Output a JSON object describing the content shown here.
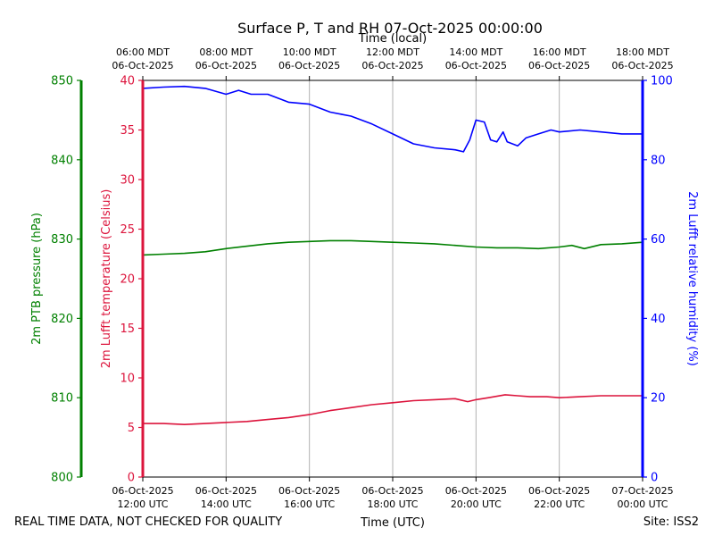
{
  "chart_data": {
    "type": "line",
    "title": "Surface P, T and RH 07-Oct-2025 00:00:00",
    "xlabel": "Time (UTC)",
    "xlabel_top": "Time (local)",
    "x_ticks_bottom": [
      {
        "date": "06-Oct-2025",
        "time": "12:00 UTC"
      },
      {
        "date": "06-Oct-2025",
        "time": "14:00 UTC"
      },
      {
        "date": "06-Oct-2025",
        "time": "16:00 UTC"
      },
      {
        "date": "06-Oct-2025",
        "time": "18:00 UTC"
      },
      {
        "date": "06-Oct-2025",
        "time": "20:00 UTC"
      },
      {
        "date": "06-Oct-2025",
        "time": "22:00 UTC"
      },
      {
        "date": "07-Oct-2025",
        "time": "00:00 UTC"
      }
    ],
    "x_ticks_top": [
      {
        "time": "06:00 MDT",
        "date": "06-Oct-2025"
      },
      {
        "time": "08:00 MDT",
        "date": "06-Oct-2025"
      },
      {
        "time": "10:00 MDT",
        "date": "06-Oct-2025"
      },
      {
        "time": "12:00 MDT",
        "date": "06-Oct-2025"
      },
      {
        "time": "14:00 MDT",
        "date": "06-Oct-2025"
      },
      {
        "time": "16:00 MDT",
        "date": "06-Oct-2025"
      },
      {
        "time": "18:00 MDT",
        "date": "06-Oct-2025"
      }
    ],
    "x_hours_utc": [
      12,
      14,
      16,
      18,
      20,
      22,
      24
    ],
    "xlim_hours_utc": [
      12,
      24
    ],
    "grid": "vertical",
    "axes": {
      "pressure": {
        "label": "2m PTB pressure (hPa)",
        "ylim": [
          800,
          850
        ],
        "ticks": [
          800,
          810,
          820,
          830,
          840,
          850
        ],
        "color": "#008000"
      },
      "temperature": {
        "label": "2m Lufft temperature (Celsius)",
        "ylim": [
          0,
          40
        ],
        "ticks": [
          0,
          5,
          10,
          15,
          20,
          25,
          30,
          35,
          40
        ],
        "color": "#dc143c"
      },
      "humidity": {
        "label": "2m Lufft relative humidity (%)",
        "ylim": [
          0,
          100
        ],
        "ticks": [
          0,
          20,
          40,
          60,
          80,
          100
        ],
        "color": "#0000ff"
      }
    },
    "series": [
      {
        "name": "2m PTB pressure (hPa)",
        "axis": "pressure",
        "color": "#008000",
        "points": [
          [
            12.0,
            828.0
          ],
          [
            12.5,
            828.1
          ],
          [
            13.0,
            828.2
          ],
          [
            13.5,
            828.4
          ],
          [
            14.0,
            828.8
          ],
          [
            14.5,
            829.1
          ],
          [
            15.0,
            829.4
          ],
          [
            15.5,
            829.6
          ],
          [
            16.0,
            829.7
          ],
          [
            16.5,
            829.8
          ],
          [
            17.0,
            829.8
          ],
          [
            17.5,
            829.7
          ],
          [
            18.0,
            829.6
          ],
          [
            18.5,
            829.5
          ],
          [
            19.0,
            829.4
          ],
          [
            19.5,
            829.2
          ],
          [
            20.0,
            829.0
          ],
          [
            20.5,
            828.9
          ],
          [
            21.0,
            828.9
          ],
          [
            21.5,
            828.8
          ],
          [
            22.0,
            829.0
          ],
          [
            22.3,
            829.2
          ],
          [
            22.6,
            828.8
          ],
          [
            23.0,
            829.3
          ],
          [
            23.5,
            829.4
          ],
          [
            24.0,
            829.6
          ]
        ]
      },
      {
        "name": "2m Lufft temperature (Celsius)",
        "axis": "temperature",
        "color": "#dc143c",
        "points": [
          [
            12.0,
            5.4
          ],
          [
            12.5,
            5.4
          ],
          [
            13.0,
            5.3
          ],
          [
            13.5,
            5.4
          ],
          [
            14.0,
            5.5
          ],
          [
            14.5,
            5.6
          ],
          [
            15.0,
            5.8
          ],
          [
            15.5,
            6.0
          ],
          [
            16.0,
            6.3
          ],
          [
            16.5,
            6.7
          ],
          [
            17.0,
            7.0
          ],
          [
            17.5,
            7.3
          ],
          [
            18.0,
            7.5
          ],
          [
            18.5,
            7.7
          ],
          [
            19.0,
            7.8
          ],
          [
            19.5,
            7.9
          ],
          [
            19.8,
            7.6
          ],
          [
            20.0,
            7.8
          ],
          [
            20.3,
            8.0
          ],
          [
            20.7,
            8.3
          ],
          [
            21.0,
            8.2
          ],
          [
            21.3,
            8.1
          ],
          [
            21.7,
            8.1
          ],
          [
            22.0,
            8.0
          ],
          [
            22.5,
            8.1
          ],
          [
            23.0,
            8.2
          ],
          [
            23.5,
            8.2
          ],
          [
            24.0,
            8.2
          ]
        ]
      },
      {
        "name": "2m Lufft relative humidity (%)",
        "axis": "humidity",
        "color": "#0000ff",
        "points": [
          [
            12.0,
            98.0
          ],
          [
            12.5,
            98.3
          ],
          [
            13.0,
            98.5
          ],
          [
            13.5,
            98.0
          ],
          [
            14.0,
            96.5
          ],
          [
            14.3,
            97.5
          ],
          [
            14.6,
            96.5
          ],
          [
            15.0,
            96.5
          ],
          [
            15.5,
            94.5
          ],
          [
            16.0,
            94.0
          ],
          [
            16.5,
            92.0
          ],
          [
            17.0,
            91.0
          ],
          [
            17.5,
            89.0
          ],
          [
            18.0,
            86.5
          ],
          [
            18.5,
            84.0
          ],
          [
            19.0,
            83.0
          ],
          [
            19.5,
            82.5
          ],
          [
            19.7,
            82.0
          ],
          [
            19.85,
            85.0
          ],
          [
            20.0,
            90.0
          ],
          [
            20.2,
            89.5
          ],
          [
            20.35,
            85.0
          ],
          [
            20.5,
            84.5
          ],
          [
            20.65,
            87.0
          ],
          [
            20.75,
            84.5
          ],
          [
            21.0,
            83.5
          ],
          [
            21.2,
            85.5
          ],
          [
            21.5,
            86.5
          ],
          [
            21.8,
            87.5
          ],
          [
            22.0,
            87.0
          ],
          [
            22.5,
            87.5
          ],
          [
            23.0,
            87.0
          ],
          [
            23.5,
            86.5
          ],
          [
            24.0,
            86.5
          ]
        ]
      }
    ]
  },
  "footer": {
    "disclaimer": "REAL TIME DATA, NOT CHECKED FOR QUALITY",
    "site": "Site: ISS2"
  }
}
